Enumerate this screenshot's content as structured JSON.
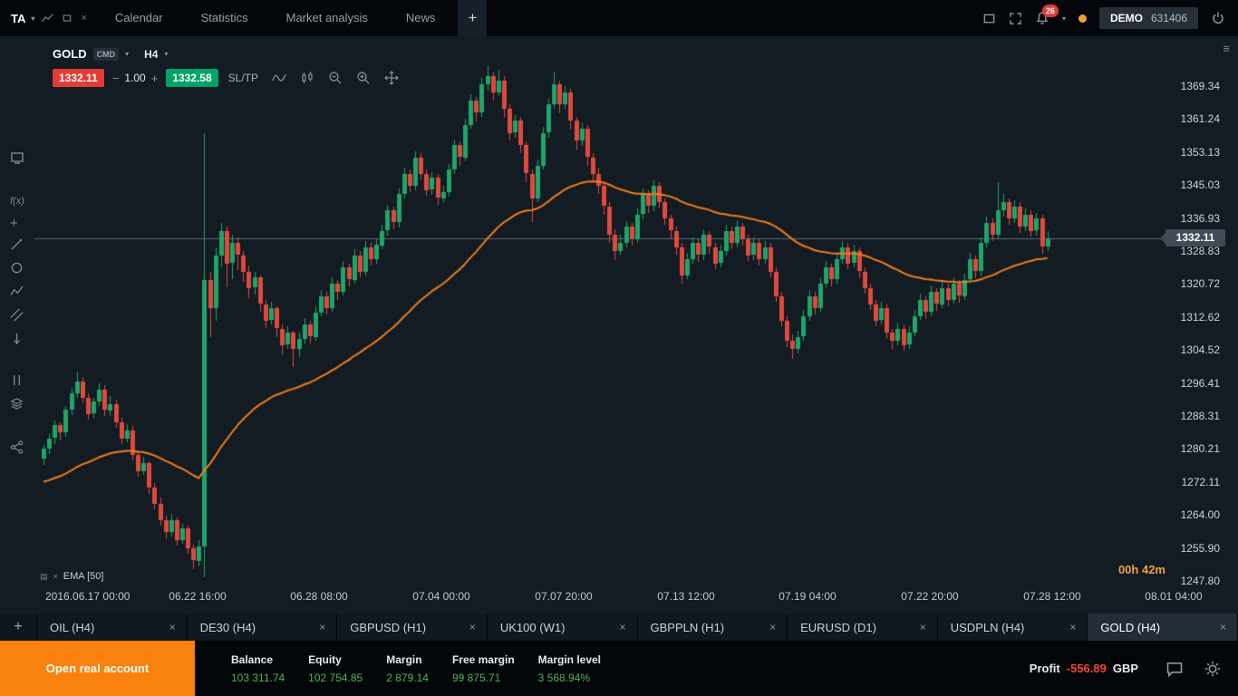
{
  "window": {
    "workspace_label": "TA",
    "nav_tabs": [
      "Calendar",
      "Statistics",
      "Market analysis",
      "News"
    ],
    "add_tab_label": "+",
    "notification_count": "26",
    "account_type": "DEMO",
    "account_number": "631406"
  },
  "chart": {
    "symbol": "GOLD",
    "symbol_badge": "CMD",
    "timeframe": "H4",
    "sell_price": "1332.11",
    "step_minus": "−",
    "step_value": "1.00",
    "step_plus": "+",
    "buy_price": "1332.58",
    "sltp_label": "SL/TP",
    "indicator_label": "EMA [50]",
    "countdown": "00h 42m",
    "current_price": "1332.11",
    "price_axis": [
      "1369.34",
      "1361.24",
      "1353.13",
      "1345.03",
      "1336.93",
      "1328.83",
      "1320.72",
      "1312.62",
      "1304.52",
      "1296.41",
      "1288.31",
      "1280.21",
      "1272.11",
      "1264.00",
      "1255.90",
      "1247.80"
    ],
    "time_axis": [
      "2016.06.17 00:00",
      "06.22 16:00",
      "06.28 08:00",
      "07.04 00:00",
      "07.07 20:00",
      "07.13 12:00",
      "07.19 04:00",
      "07.22 20:00",
      "07.28 12:00",
      "08.01 04:00"
    ],
    "left_toolbar_icons": [
      "chart-display-icon",
      "indicators-fx-icon",
      "add-icon",
      "draw-line-icon",
      "draw-ellipse-icon",
      "zigzag-icon",
      "channel-icon",
      "arrow-down-icon",
      "vertical-lines-icon",
      "layers-icon",
      "share-icon"
    ],
    "toolbar_icons": [
      "line-chart-icon",
      "candlestick-icon",
      "zoom-out-icon",
      "zoom-in-icon",
      "pan-icon"
    ]
  },
  "chart_data": {
    "type": "candlestick",
    "symbol": "GOLD",
    "timeframe": "H4",
    "price_axis_top": 1369.34,
    "price_axis_bottom": 1247.8,
    "ema_period": 50,
    "ema_start": 1272,
    "colors": {
      "up": "#1fa569",
      "down": "#df4a3e",
      "ema": "#ef7d1a",
      "price_line": "#5f6a74"
    },
    "candles": [
      [
        1278.0,
        1281.5,
        1276.5,
        1280.5
      ],
      [
        1280.5,
        1284.0,
        1279.2,
        1283.0
      ],
      [
        1283.0,
        1287.5,
        1281.8,
        1286.2
      ],
      [
        1286.2,
        1287.0,
        1282.5,
        1284.5
      ],
      [
        1284.5,
        1291.0,
        1283.5,
        1290.0
      ],
      [
        1290.0,
        1295.5,
        1288.8,
        1294.0
      ],
      [
        1294.0,
        1299.5,
        1293.0,
        1297.0
      ],
      [
        1297.0,
        1298.0,
        1291.5,
        1293.0
      ],
      [
        1293.0,
        1294.0,
        1287.5,
        1289.0
      ],
      [
        1289.0,
        1293.0,
        1288.0,
        1292.0
      ],
      [
        1292.0,
        1296.5,
        1291.0,
        1295.0
      ],
      [
        1295.0,
        1296.0,
        1288.5,
        1290.0
      ],
      [
        1290.0,
        1293.5,
        1288.5,
        1291.5
      ],
      [
        1291.5,
        1292.5,
        1285.5,
        1287.0
      ],
      [
        1287.0,
        1288.0,
        1281.5,
        1283.0
      ],
      [
        1283.0,
        1286.5,
        1282.0,
        1285.0
      ],
      [
        1285.0,
        1286.0,
        1277.5,
        1279.0
      ],
      [
        1279.0,
        1280.0,
        1273.5,
        1275.0
      ],
      [
        1275.0,
        1278.5,
        1274.0,
        1277.0
      ],
      [
        1277.0,
        1277.5,
        1269.5,
        1271.0
      ],
      [
        1271.0,
        1272.0,
        1265.5,
        1267.0
      ],
      [
        1267.0,
        1268.5,
        1261.5,
        1263.0
      ],
      [
        1263.0,
        1264.0,
        1258.5,
        1260.0
      ],
      [
        1260.0,
        1264.5,
        1259.0,
        1263.0
      ],
      [
        1263.0,
        1263.5,
        1256.5,
        1258.0
      ],
      [
        1258.0,
        1262.0,
        1257.0,
        1261.0
      ],
      [
        1261.0,
        1261.5,
        1254.5,
        1256.0
      ],
      [
        1256.0,
        1257.0,
        1251.0,
        1253.0
      ],
      [
        1253.0,
        1258.0,
        1251.5,
        1256.5
      ],
      [
        1256.5,
        1358.0,
        1249.0,
        1322.0
      ],
      [
        1322.0,
        1324.0,
        1308.0,
        1315.0
      ],
      [
        1315.0,
        1330.0,
        1312.0,
        1328.0
      ],
      [
        1328.0,
        1336.0,
        1325.0,
        1334.0
      ],
      [
        1334.0,
        1335.0,
        1320.0,
        1326.0
      ],
      [
        1326.0,
        1333.0,
        1322.0,
        1331.0
      ],
      [
        1331.0,
        1332.5,
        1324.5,
        1328.0
      ],
      [
        1328.0,
        1329.0,
        1321.5,
        1324.0
      ],
      [
        1324.0,
        1325.5,
        1317.5,
        1320.0
      ],
      [
        1320.0,
        1324.0,
        1318.5,
        1322.5
      ],
      [
        1322.5,
        1323.0,
        1314.0,
        1316.0
      ],
      [
        1316.0,
        1317.0,
        1310.0,
        1312.0
      ],
      [
        1312.0,
        1316.5,
        1311.0,
        1315.0
      ],
      [
        1315.0,
        1315.5,
        1308.0,
        1310.0
      ],
      [
        1310.0,
        1311.0,
        1303.5,
        1306.0
      ],
      [
        1306.0,
        1310.5,
        1305.0,
        1309.0
      ],
      [
        1309.0,
        1309.5,
        1300.5,
        1305.0
      ],
      [
        1305.0,
        1309.0,
        1303.0,
        1307.5
      ],
      [
        1307.5,
        1312.5,
        1306.0,
        1311.0
      ],
      [
        1311.0,
        1312.0,
        1306.5,
        1308.0
      ],
      [
        1308.0,
        1315.5,
        1307.0,
        1314.0
      ],
      [
        1314.0,
        1319.5,
        1313.0,
        1318.0
      ],
      [
        1318.0,
        1319.0,
        1313.5,
        1315.0
      ],
      [
        1315.0,
        1322.5,
        1314.0,
        1321.0
      ],
      [
        1321.0,
        1322.0,
        1317.0,
        1319.0
      ],
      [
        1319.0,
        1326.5,
        1318.0,
        1325.0
      ],
      [
        1325.0,
        1326.0,
        1320.5,
        1322.0
      ],
      [
        1322.0,
        1329.5,
        1321.0,
        1328.0
      ],
      [
        1328.0,
        1329.0,
        1322.5,
        1324.0
      ],
      [
        1324.0,
        1331.5,
        1323.0,
        1330.0
      ],
      [
        1330.0,
        1331.0,
        1325.5,
        1327.0
      ],
      [
        1327.0,
        1332.0,
        1326.0,
        1330.5
      ],
      [
        1330.5,
        1335.5,
        1329.5,
        1334.0
      ],
      [
        1334.0,
        1340.5,
        1333.0,
        1339.0
      ],
      [
        1339.0,
        1340.0,
        1334.5,
        1336.0
      ],
      [
        1336.0,
        1344.5,
        1335.0,
        1343.0
      ],
      [
        1343.0,
        1349.5,
        1342.0,
        1348.0
      ],
      [
        1348.0,
        1349.0,
        1343.5,
        1345.0
      ],
      [
        1345.0,
        1353.5,
        1344.0,
        1352.0
      ],
      [
        1352.0,
        1353.0,
        1346.5,
        1348.0
      ],
      [
        1348.0,
        1349.0,
        1342.5,
        1344.0
      ],
      [
        1344.0,
        1348.5,
        1343.0,
        1347.0
      ],
      [
        1347.0,
        1348.0,
        1340.5,
        1342.0
      ],
      [
        1342.0,
        1345.0,
        1341.0,
        1343.5
      ],
      [
        1343.5,
        1350.5,
        1342.5,
        1349.0
      ],
      [
        1349.0,
        1356.5,
        1348.0,
        1355.0
      ],
      [
        1355.0,
        1356.0,
        1350.0,
        1352.0
      ],
      [
        1352.0,
        1361.5,
        1351.0,
        1360.0
      ],
      [
        1360.0,
        1367.5,
        1359.0,
        1366.0
      ],
      [
        1366.0,
        1367.0,
        1361.0,
        1363.0
      ],
      [
        1363.0,
        1371.5,
        1362.0,
        1370.0
      ],
      [
        1370.0,
        1374.5,
        1368.5,
        1372.0
      ],
      [
        1372.0,
        1373.0,
        1366.0,
        1368.0
      ],
      [
        1368.0,
        1373.5,
        1367.0,
        1371.0
      ],
      [
        1371.0,
        1372.0,
        1362.0,
        1364.0
      ],
      [
        1364.0,
        1365.0,
        1356.0,
        1358.0
      ],
      [
        1358.0,
        1362.5,
        1357.0,
        1361.0
      ],
      [
        1361.0,
        1362.0,
        1353.0,
        1355.0
      ],
      [
        1355.0,
        1356.0,
        1346.0,
        1348.0
      ],
      [
        1348.0,
        1349.0,
        1336.0,
        1342.0
      ],
      [
        1342.0,
        1351.5,
        1341.0,
        1350.0
      ],
      [
        1350.0,
        1359.5,
        1349.0,
        1358.0
      ],
      [
        1358.0,
        1366.5,
        1357.0,
        1365.0
      ],
      [
        1365.0,
        1373.0,
        1364.0,
        1370.0
      ],
      [
        1370.0,
        1371.0,
        1363.0,
        1365.0
      ],
      [
        1365.0,
        1369.5,
        1364.0,
        1368.0
      ],
      [
        1368.0,
        1369.0,
        1359.0,
        1361.0
      ],
      [
        1361.0,
        1362.0,
        1354.0,
        1356.0
      ],
      [
        1356.0,
        1360.5,
        1355.0,
        1359.0
      ],
      [
        1359.0,
        1360.0,
        1350.0,
        1352.0
      ],
      [
        1352.0,
        1353.0,
        1346.0,
        1348.0
      ],
      [
        1348.0,
        1349.5,
        1343.0,
        1345.0
      ],
      [
        1345.0,
        1346.0,
        1338.0,
        1340.0
      ],
      [
        1340.0,
        1341.0,
        1331.0,
        1333.0
      ],
      [
        1333.0,
        1334.5,
        1327.0,
        1329.0
      ],
      [
        1329.0,
        1333.0,
        1328.0,
        1331.0
      ],
      [
        1331.0,
        1336.5,
        1330.0,
        1335.0
      ],
      [
        1335.0,
        1336.0,
        1330.5,
        1332.0
      ],
      [
        1332.0,
        1339.5,
        1331.0,
        1338.0
      ],
      [
        1338.0,
        1344.5,
        1337.0,
        1343.0
      ],
      [
        1343.0,
        1344.0,
        1338.5,
        1340.0
      ],
      [
        1340.0,
        1346.5,
        1339.0,
        1345.0
      ],
      [
        1345.0,
        1346.0,
        1339.5,
        1341.0
      ],
      [
        1341.0,
        1342.0,
        1335.5,
        1337.0
      ],
      [
        1337.0,
        1338.0,
        1332.0,
        1334.0
      ],
      [
        1334.0,
        1335.0,
        1328.0,
        1330.0
      ],
      [
        1330.0,
        1331.0,
        1321.0,
        1323.0
      ],
      [
        1323.0,
        1328.5,
        1322.0,
        1327.0
      ],
      [
        1327.0,
        1332.5,
        1326.0,
        1331.0
      ],
      [
        1331.0,
        1332.0,
        1326.5,
        1328.0
      ],
      [
        1328.0,
        1334.5,
        1327.0,
        1333.0
      ],
      [
        1333.0,
        1334.0,
        1328.5,
        1330.0
      ],
      [
        1330.0,
        1331.0,
        1324.5,
        1326.0
      ],
      [
        1326.0,
        1330.5,
        1325.0,
        1329.0
      ],
      [
        1329.0,
        1335.5,
        1328.0,
        1334.0
      ],
      [
        1334.0,
        1335.0,
        1329.5,
        1331.0
      ],
      [
        1331.0,
        1336.5,
        1330.0,
        1335.0
      ],
      [
        1335.0,
        1336.0,
        1330.5,
        1332.0
      ],
      [
        1332.0,
        1333.0,
        1326.5,
        1328.0
      ],
      [
        1328.0,
        1332.5,
        1327.0,
        1331.0
      ],
      [
        1331.0,
        1332.0,
        1325.5,
        1327.0
      ],
      [
        1327.0,
        1331.5,
        1326.0,
        1330.0
      ],
      [
        1330.0,
        1331.0,
        1322.5,
        1324.0
      ],
      [
        1324.0,
        1325.0,
        1316.5,
        1318.0
      ],
      [
        1318.0,
        1319.0,
        1310.5,
        1312.0
      ],
      [
        1312.0,
        1313.0,
        1305.5,
        1307.0
      ],
      [
        1307.0,
        1308.5,
        1302.5,
        1305.0
      ],
      [
        1305.0,
        1309.5,
        1304.0,
        1308.0
      ],
      [
        1308.0,
        1314.5,
        1307.0,
        1313.0
      ],
      [
        1313.0,
        1319.5,
        1312.0,
        1318.0
      ],
      [
        1318.0,
        1319.0,
        1313.5,
        1315.0
      ],
      [
        1315.0,
        1322.5,
        1314.0,
        1321.0
      ],
      [
        1321.0,
        1326.5,
        1320.0,
        1325.0
      ],
      [
        1325.0,
        1326.0,
        1320.5,
        1322.0
      ],
      [
        1322.0,
        1328.5,
        1321.0,
        1327.0
      ],
      [
        1327.0,
        1331.5,
        1326.0,
        1330.0
      ],
      [
        1330.0,
        1331.0,
        1324.5,
        1326.0
      ],
      [
        1326.0,
        1330.5,
        1325.0,
        1329.0
      ],
      [
        1329.0,
        1330.0,
        1322.5,
        1324.0
      ],
      [
        1324.0,
        1325.0,
        1318.5,
        1320.0
      ],
      [
        1320.0,
        1321.0,
        1314.5,
        1316.0
      ],
      [
        1316.0,
        1317.0,
        1310.5,
        1312.0
      ],
      [
        1312.0,
        1316.5,
        1311.0,
        1315.0
      ],
      [
        1315.0,
        1316.0,
        1307.5,
        1309.0
      ],
      [
        1309.0,
        1310.0,
        1305.0,
        1307.0
      ],
      [
        1307.0,
        1311.5,
        1306.0,
        1310.0
      ],
      [
        1310.0,
        1311.0,
        1304.5,
        1306.0
      ],
      [
        1306.0,
        1310.5,
        1305.0,
        1309.0
      ],
      [
        1309.0,
        1314.5,
        1308.0,
        1313.0
      ],
      [
        1313.0,
        1318.5,
        1312.0,
        1317.0
      ],
      [
        1317.0,
        1318.0,
        1312.5,
        1314.0
      ],
      [
        1314.0,
        1320.5,
        1313.0,
        1319.0
      ],
      [
        1319.0,
        1320.0,
        1314.5,
        1316.0
      ],
      [
        1316.0,
        1321.5,
        1315.0,
        1320.0
      ],
      [
        1320.0,
        1321.0,
        1315.5,
        1317.0
      ],
      [
        1317.0,
        1322.5,
        1316.0,
        1321.0
      ],
      [
        1321.0,
        1322.0,
        1316.5,
        1318.0
      ],
      [
        1318.0,
        1323.5,
        1317.0,
        1322.0
      ],
      [
        1322.0,
        1328.5,
        1321.0,
        1327.0
      ],
      [
        1327.0,
        1328.0,
        1322.5,
        1324.0
      ],
      [
        1324.0,
        1332.5,
        1323.0,
        1331.0
      ],
      [
        1331.0,
        1337.5,
        1330.0,
        1336.0
      ],
      [
        1336.0,
        1337.0,
        1331.5,
        1333.0
      ],
      [
        1333.0,
        1346.0,
        1332.0,
        1339.0
      ],
      [
        1339.0,
        1343.0,
        1337.5,
        1341.0
      ],
      [
        1341.0,
        1342.0,
        1335.5,
        1337.0
      ],
      [
        1337.0,
        1341.5,
        1336.0,
        1340.0
      ],
      [
        1340.0,
        1341.0,
        1333.5,
        1335.0
      ],
      [
        1335.0,
        1339.5,
        1334.0,
        1338.0
      ],
      [
        1338.0,
        1339.0,
        1332.5,
        1334.0
      ],
      [
        1334.0,
        1338.5,
        1333.0,
        1337.0
      ],
      [
        1337.0,
        1338.0,
        1328.5,
        1330.0
      ],
      [
        1330.0,
        1334.0,
        1329.0,
        1332.1
      ]
    ]
  },
  "instrument_bar": {
    "add_label": "+"
  },
  "instrument_tabs": [
    {
      "label": "OIL (H4)"
    },
    {
      "label": "DE30 (H4)"
    },
    {
      "label": "GBPUSD (H1)"
    },
    {
      "label": "UK100 (W1)"
    },
    {
      "label": "GBPPLN (H1)"
    },
    {
      "label": "EURUSD (D1)"
    },
    {
      "label": "USDPLN (H4)"
    },
    {
      "label": "GOLD (H4)",
      "active": true
    }
  ],
  "statusbar": {
    "cta_label": "Open real account",
    "metrics": [
      {
        "label": "Balance",
        "value": "103 311.74"
      },
      {
        "label": "Equity",
        "value": "102 754.85"
      },
      {
        "label": "Margin",
        "value": "2 879.14"
      },
      {
        "label": "Free margin",
        "value": "99 875.71"
      },
      {
        "label": "Margin level",
        "value": "3 568.94%"
      }
    ],
    "profit_label": "Profit",
    "profit_value": "-556.89",
    "profit_currency": "GBP"
  },
  "colors": {
    "accent_orange": "#f8820d",
    "candle_up": "#1fa569",
    "candle_down": "#df4a3e",
    "ema_line": "#ef7d1a",
    "value_green": "#4db551",
    "profit_red": "#f0453d",
    "badge_red": "#e33c36"
  }
}
